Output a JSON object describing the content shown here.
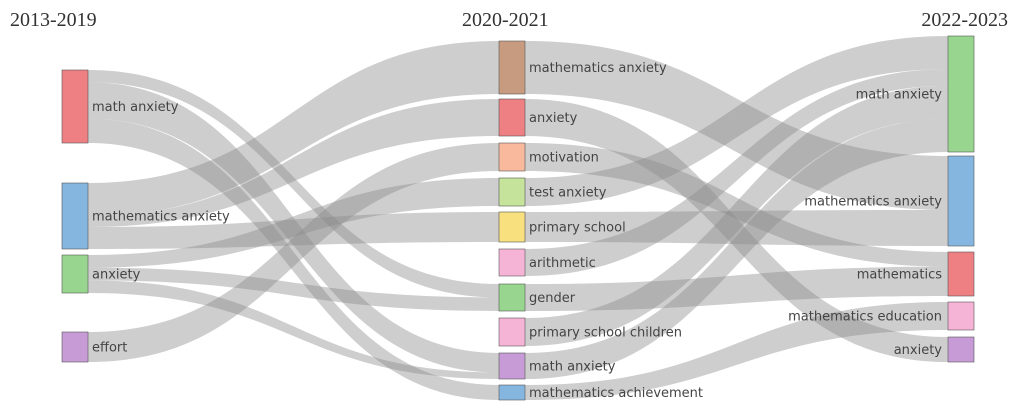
{
  "periods": [
    "2013-2019",
    "2020-2021",
    "2022-2023"
  ],
  "columns": [
    {
      "period": "2013-2019",
      "nodes": [
        {
          "id": "c0_math_anxiety",
          "label": "math anxiety",
          "color": "#ee7f82"
        },
        {
          "id": "c0_mathematics_anxiety",
          "label": "mathematics anxiety",
          "color": "#84b6e0"
        },
        {
          "id": "c0_anxiety",
          "label": "anxiety",
          "color": "#98d690"
        },
        {
          "id": "c0_effort",
          "label": "effort",
          "color": "#c79bd6"
        }
      ]
    },
    {
      "period": "2020-2021",
      "nodes": [
        {
          "id": "c1_mathematics_anxiety",
          "label": "mathematics anxiety",
          "color": "#c79b80"
        },
        {
          "id": "c1_anxiety",
          "label": "anxiety",
          "color": "#ee7f82"
        },
        {
          "id": "c1_motivation",
          "label": "motivation",
          "color": "#f8b99d"
        },
        {
          "id": "c1_test_anxiety",
          "label": "test anxiety",
          "color": "#c5e39b"
        },
        {
          "id": "c1_primary_school",
          "label": "primary school",
          "color": "#f8e07f"
        },
        {
          "id": "c1_arithmetic",
          "label": "arithmetic",
          "color": "#f5b3d6"
        },
        {
          "id": "c1_gender",
          "label": "gender",
          "color": "#98d690"
        },
        {
          "id": "c1_primary_school_children",
          "label": "primary school children",
          "color": "#f5b3d6"
        },
        {
          "id": "c1_math_anxiety",
          "label": "math anxiety",
          "color": "#c79bd6"
        },
        {
          "id": "c1_mathematics_achievement",
          "label": "mathematics achievement",
          "color": "#84b6e0"
        }
      ]
    },
    {
      "period": "2022-2023",
      "nodes": [
        {
          "id": "c2_math_anxiety",
          "label": "math anxiety",
          "color": "#98d690"
        },
        {
          "id": "c2_mathematics_anxiety",
          "label": "mathematics anxiety",
          "color": "#84b6e0"
        },
        {
          "id": "c2_mathematics",
          "label": "mathematics",
          "color": "#ee7f82"
        },
        {
          "id": "c2_mathematics_education",
          "label": "mathematics education",
          "color": "#f5b3d6"
        },
        {
          "id": "c2_anxiety",
          "label": "anxiety",
          "color": "#c79bd6"
        }
      ]
    }
  ],
  "links": [
    {
      "source": "c0_math_anxiety",
      "target": "c1_math_anxiety",
      "value": 3
    },
    {
      "source": "c0_math_anxiety",
      "target": "c1_mathematics_achievement",
      "value": 2
    },
    {
      "source": "c0_math_anxiety",
      "target": "c1_gender",
      "value": 1
    },
    {
      "source": "c0_mathematics_anxiety",
      "target": "c1_mathematics_anxiety",
      "value": 3
    },
    {
      "source": "c0_mathematics_anxiety",
      "target": "c1_primary_school",
      "value": 2
    },
    {
      "source": "c0_mathematics_anxiety",
      "target": "c1_anxiety",
      "value": 1
    },
    {
      "source": "c0_anxiety",
      "target": "c1_test_anxiety",
      "value": 1
    },
    {
      "source": "c0_anxiety",
      "target": "c1_gender",
      "value": 1
    },
    {
      "source": "c0_anxiety",
      "target": "c1_math_anxiety",
      "value": 1
    },
    {
      "source": "c0_effort",
      "target": "c1_motivation",
      "value": 2
    },
    {
      "source": "c1_mathematics_anxiety",
      "target": "c2_mathematics_anxiety",
      "value": 3
    },
    {
      "source": "c1_anxiety",
      "target": "c2_anxiety",
      "value": 2
    },
    {
      "source": "c1_motivation",
      "target": "c2_mathematics",
      "value": 1
    },
    {
      "source": "c1_test_anxiety",
      "target": "c2_math_anxiety",
      "value": 2
    },
    {
      "source": "c1_primary_school",
      "target": "c2_mathematics_anxiety",
      "value": 2
    },
    {
      "source": "c1_arithmetic",
      "target": "c2_math_anxiety",
      "value": 1
    },
    {
      "source": "c1_gender",
      "target": "c2_mathematics",
      "value": 2
    },
    {
      "source": "c1_primary_school_children",
      "target": "c2_math_anxiety",
      "value": 2
    },
    {
      "source": "c1_math_anxiety",
      "target": "c2_math_anxiety",
      "value": 2
    },
    {
      "source": "c1_mathematics_achievement",
      "target": "c2_mathematics_education",
      "value": 1
    }
  ]
}
